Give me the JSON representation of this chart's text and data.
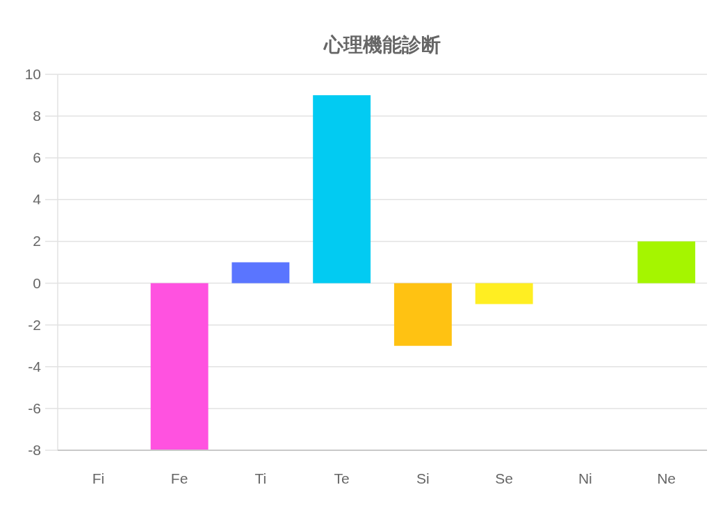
{
  "chart_data": {
    "type": "bar",
    "title": "心理機能診断",
    "categories": [
      "Fi",
      "Fe",
      "Ti",
      "Te",
      "Si",
      "Se",
      "Ni",
      "Ne"
    ],
    "values": [
      0,
      -8,
      1,
      9,
      -3,
      -1,
      0,
      2
    ],
    "colors": [
      null,
      "#ff52e0",
      "#5a75ff",
      "#02cbf2",
      "#ffc212",
      "#ffee22",
      null,
      "#a5f500"
    ],
    "ylim": [
      -8,
      10
    ],
    "yticks": [
      -8,
      -6,
      -4,
      -2,
      0,
      2,
      4,
      6,
      8,
      10
    ],
    "grid": "y"
  }
}
